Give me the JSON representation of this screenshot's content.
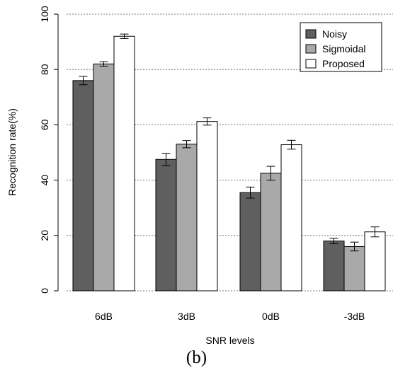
{
  "caption": "(b)",
  "chart_data": {
    "type": "bar",
    "title": "",
    "xlabel": "SNR levels",
    "ylabel": "Recognition rate(%)",
    "ylim": [
      0,
      100
    ],
    "yticks": [
      0,
      20,
      40,
      60,
      80,
      100
    ],
    "grid": "horizontal dotted",
    "legend_position": "top-right",
    "categories": [
      "6dB",
      "3dB",
      "0dB",
      "-3dB"
    ],
    "series": [
      {
        "name": "Noisy",
        "color": "#5f5f5f",
        "values": [
          76,
          47.5,
          35.5,
          18
        ],
        "errors": [
          1.5,
          2.2,
          2.0,
          1.0
        ]
      },
      {
        "name": "Sigmoidal",
        "color": "#a9a9a9",
        "values": [
          82,
          53,
          42.5,
          16
        ],
        "errors": [
          0.8,
          1.3,
          2.5,
          1.6
        ]
      },
      {
        "name": "Proposed",
        "color": "#ffffff",
        "values": [
          92,
          61.2,
          52.8,
          21.3
        ],
        "errors": [
          0.8,
          1.3,
          1.6,
          1.8
        ]
      }
    ]
  }
}
